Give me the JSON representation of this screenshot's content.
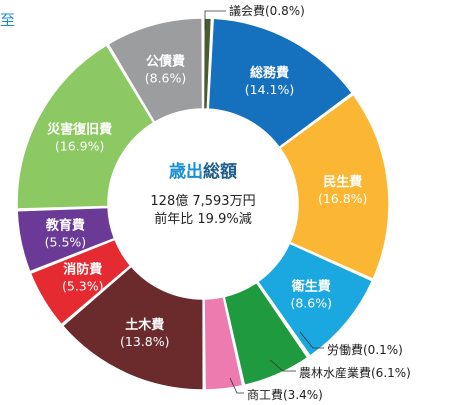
{
  "chart_data": {
    "type": "pie",
    "donut": true,
    "title": "歳出総額",
    "title_parts": {
      "highlight": "歳出",
      "rest": "総額"
    },
    "center_lines": [
      "128億 7,593万円",
      "前年比 19.9%減"
    ],
    "unit": "%",
    "legend": "none",
    "slices": [
      {
        "label": "議会費",
        "value": 0.8,
        "value_text": "(0.8%)",
        "color": "#4c5a32",
        "placement": "outside"
      },
      {
        "label": "総務費",
        "value": 14.1,
        "value_text": "(14.1%)",
        "color": "#1570bd",
        "placement": "inside"
      },
      {
        "label": "民生費",
        "value": 16.8,
        "value_text": "(16.8%)",
        "color": "#fbb634",
        "placement": "inside"
      },
      {
        "label": "衛生費",
        "value": 8.6,
        "value_text": "(8.6%)",
        "color": "#1ba8e0",
        "placement": "inside"
      },
      {
        "label": "労働費",
        "value": 0.1,
        "value_text": "(0.1%)",
        "color": "#8a8a8a",
        "placement": "outside"
      },
      {
        "label": "農林水産業費",
        "value": 6.1,
        "value_text": "(6.1%)",
        "color": "#1f9a3f",
        "placement": "outside"
      },
      {
        "label": "商工費",
        "value": 3.4,
        "value_text": "(3.4%)",
        "color": "#ee7bb0",
        "placement": "outside"
      },
      {
        "label": "土木費",
        "value": 13.8,
        "value_text": "(13.8%)",
        "color": "#6b2a2c",
        "placement": "inside"
      },
      {
        "label": "消防費",
        "value": 5.3,
        "value_text": "(5.3%)",
        "color": "#e52a31",
        "placement": "inside"
      },
      {
        "label": "教育費",
        "value": 5.5,
        "value_text": "(5.5%)",
        "color": "#6a3a96",
        "placement": "inside"
      },
      {
        "label": "災害復旧費",
        "value": 16.9,
        "value_text": "(16.9%)",
        "color": "#8cc963",
        "placement": "inside"
      },
      {
        "label": "公債費",
        "value": 8.6,
        "value_text": "(8.6%)",
        "color": "#9c9d9f",
        "placement": "inside"
      }
    ],
    "colors": {
      "title_highlight": "#1a8fd6",
      "title_rest": "#1e5e8c",
      "center_text": "#222222",
      "edge_mark": "#1a8fd6"
    }
  },
  "edge_mark_text": "至"
}
